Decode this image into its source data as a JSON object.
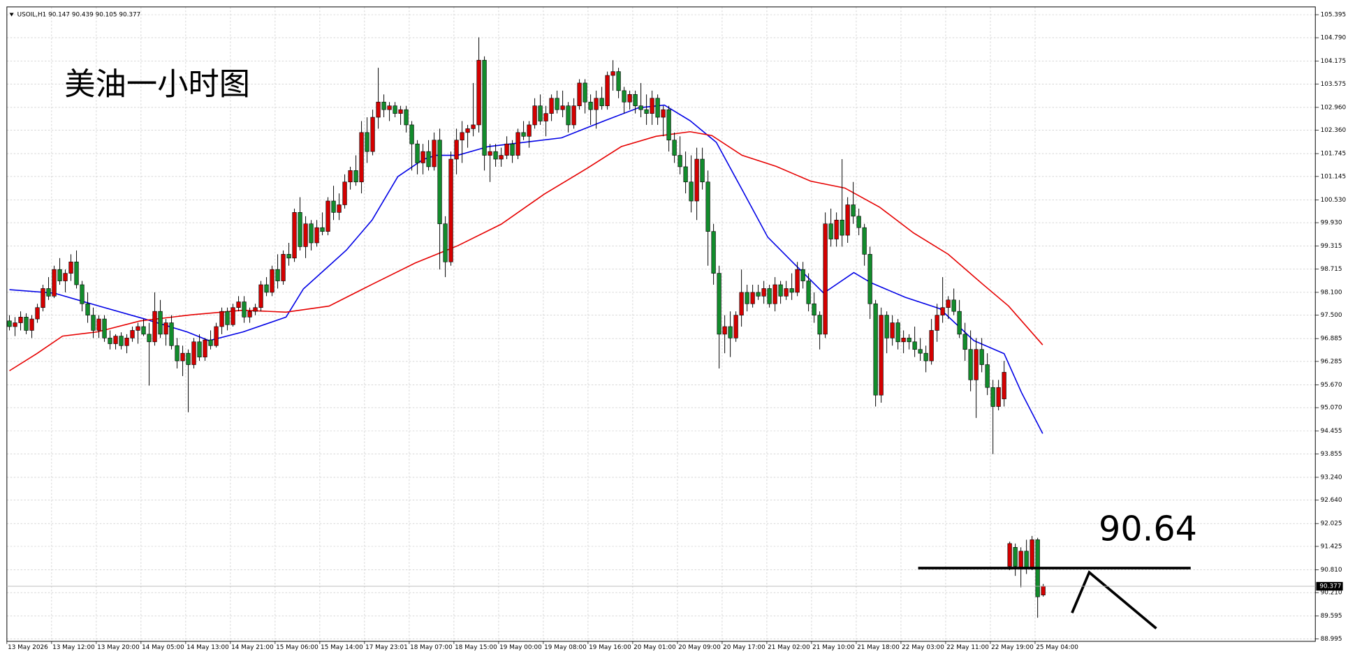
{
  "chart_data": {
    "type": "candlestick",
    "header": "USOIL,H1  90.147 90.439 90.105 90.377",
    "title": "美油一小时图",
    "annotation": "90.64",
    "bull_color": "#d40000",
    "bear_color": "#128c2c",
    "grid": true,
    "ylim": [
      88.93,
      105.6
    ],
    "yticks": [
      105.395,
      {
        "value": 104.79,
        "label": "104.790"
      },
      104.175,
      103.575,
      {
        "value": 102.96,
        "label": "102.960"
      },
      {
        "value": 102.36,
        "label": "102.360"
      },
      101.745,
      101.145,
      {
        "value": 100.53,
        "label": "100.530"
      },
      {
        "value": 99.93,
        "label": "99.930"
      },
      99.315,
      98.715,
      {
        "value": 98.1,
        "label": "98.100"
      },
      {
        "value": 97.5,
        "label": "97.500"
      },
      96.885,
      96.285,
      {
        "value": 95.67,
        "label": "95.670"
      },
      {
        "value": 95.07,
        "label": "95.070"
      },
      94.455,
      93.855,
      {
        "value": 93.24,
        "label": "93.240"
      },
      {
        "value": 92.64,
        "label": "92.640"
      },
      92.025,
      91.425,
      {
        "value": 90.81,
        "label": "90.810"
      },
      {
        "value": 90.21,
        "label": "90.210"
      },
      89.595,
      88.995
    ],
    "xticks": [
      {
        "value": 0,
        "label": "13 May 2026"
      },
      {
        "value": 8,
        "label": "13 May 12:00"
      },
      {
        "value": 16,
        "label": "13 May 20:00"
      },
      {
        "value": 24,
        "label": "14 May 05:00"
      },
      {
        "value": 32,
        "label": "14 May 13:00"
      },
      {
        "value": 40,
        "label": "14 May 21:00"
      },
      {
        "value": 48,
        "label": "15 May 06:00"
      },
      {
        "value": 56,
        "label": "15 May 14:00"
      },
      {
        "value": 64,
        "label": "17 May 23:01"
      },
      {
        "value": 72,
        "label": "18 May 07:00"
      },
      {
        "value": 80,
        "label": "18 May 15:00"
      },
      {
        "value": 88,
        "label": "19 May 00:00"
      },
      {
        "value": 96,
        "label": "19 May 08:00"
      },
      {
        "value": 104,
        "label": "19 May 16:00"
      },
      {
        "value": 112,
        "label": "20 May 01:00"
      },
      {
        "value": 120,
        "label": "20 May 09:00"
      },
      {
        "value": 128,
        "label": "20 May 17:00"
      },
      {
        "value": 136,
        "label": "21 May 02:00"
      },
      {
        "value": 144,
        "label": "21 May 10:00"
      },
      {
        "value": 152,
        "label": "21 May 18:00"
      },
      {
        "value": 160,
        "label": "22 May 03:00"
      },
      {
        "value": 168,
        "label": "22 May 11:00"
      },
      {
        "value": 176,
        "label": "22 May 19:00"
      },
      {
        "value": 184,
        "label": "25 May 04:00"
      }
    ],
    "last_price": 90.377,
    "ohlc": [
      [
        97.35,
        97.5,
        97.1,
        97.2
      ],
      [
        97.2,
        97.45,
        96.95,
        97.3
      ],
      [
        97.3,
        97.6,
        97.1,
        97.45
      ],
      [
        97.45,
        97.55,
        97.0,
        97.1
      ],
      [
        97.1,
        97.5,
        96.9,
        97.4
      ],
      [
        97.4,
        97.8,
        97.3,
        97.7
      ],
      [
        97.7,
        98.3,
        97.6,
        98.2
      ],
      [
        98.2,
        98.5,
        97.9,
        98.0
      ],
      [
        98.0,
        98.8,
        97.95,
        98.7
      ],
      [
        98.7,
        99.0,
        98.3,
        98.4
      ],
      [
        98.4,
        98.7,
        98.1,
        98.6
      ],
      [
        98.6,
        99.1,
        98.4,
        98.9
      ],
      [
        98.9,
        99.2,
        98.2,
        98.3
      ],
      [
        98.3,
        98.4,
        97.6,
        97.8
      ],
      [
        97.8,
        98.1,
        97.3,
        97.5
      ],
      [
        97.5,
        97.7,
        96.9,
        97.1
      ],
      [
        97.1,
        97.5,
        96.9,
        97.4
      ],
      [
        97.4,
        97.5,
        96.8,
        96.9
      ],
      [
        96.9,
        97.1,
        96.6,
        96.75
      ],
      [
        96.75,
        97.0,
        96.6,
        96.95
      ],
      [
        96.95,
        97.05,
        96.6,
        96.7
      ],
      [
        96.7,
        97.0,
        96.5,
        96.9
      ],
      [
        96.9,
        97.2,
        96.8,
        97.1
      ],
      [
        97.1,
        97.3,
        96.75,
        97.2
      ],
      [
        97.2,
        97.4,
        96.95,
        97.0
      ],
      [
        97.0,
        97.3,
        95.65,
        96.8
      ],
      [
        96.8,
        98.1,
        96.7,
        97.6
      ],
      [
        97.6,
        97.9,
        96.9,
        97.0
      ],
      [
        97.0,
        97.4,
        96.7,
        97.3
      ],
      [
        97.3,
        97.5,
        96.6,
        96.7
      ],
      [
        96.7,
        96.9,
        96.1,
        96.3
      ],
      [
        96.3,
        96.7,
        95.9,
        96.5
      ],
      [
        96.5,
        96.6,
        94.95,
        96.2
      ],
      [
        96.2,
        96.9,
        96.1,
        96.8
      ],
      [
        96.8,
        97.0,
        96.3,
        96.4
      ],
      [
        96.4,
        96.9,
        96.3,
        96.85
      ],
      [
        96.85,
        97.1,
        96.6,
        96.7
      ],
      [
        96.7,
        97.3,
        96.65,
        97.2
      ],
      [
        97.2,
        97.7,
        97.0,
        97.6
      ],
      [
        97.6,
        97.7,
        97.1,
        97.25
      ],
      [
        97.25,
        97.8,
        97.2,
        97.7
      ],
      [
        97.7,
        98.0,
        97.6,
        97.85
      ],
      [
        97.85,
        98.0,
        97.3,
        97.45
      ],
      [
        97.45,
        97.7,
        97.3,
        97.6
      ],
      [
        97.6,
        97.8,
        97.5,
        97.7
      ],
      [
        97.7,
        98.4,
        97.6,
        98.3
      ],
      [
        98.3,
        98.5,
        98.0,
        98.1
      ],
      [
        98.1,
        98.8,
        98.0,
        98.7
      ],
      [
        98.7,
        99.1,
        98.2,
        98.4
      ],
      [
        98.4,
        99.2,
        98.3,
        99.1
      ],
      [
        99.1,
        99.4,
        98.8,
        99.0
      ],
      [
        99.0,
        100.3,
        98.9,
        100.2
      ],
      [
        100.2,
        100.6,
        99.2,
        99.3
      ],
      [
        99.3,
        100.1,
        99.0,
        99.9
      ],
      [
        99.9,
        100.0,
        99.2,
        99.4
      ],
      [
        99.4,
        100.0,
        99.3,
        99.8
      ],
      [
        99.8,
        100.2,
        99.6,
        99.7
      ],
      [
        99.7,
        100.6,
        99.6,
        100.5
      ],
      [
        100.5,
        100.9,
        100.0,
        100.2
      ],
      [
        100.2,
        100.7,
        100.0,
        100.4
      ],
      [
        100.4,
        101.2,
        100.3,
        101.0
      ],
      [
        101.0,
        101.4,
        100.8,
        101.3
      ],
      [
        101.3,
        101.7,
        100.9,
        101.0
      ],
      [
        101.0,
        102.6,
        100.7,
        102.3
      ],
      [
        102.3,
        102.7,
        101.5,
        101.8
      ],
      [
        101.8,
        102.9,
        101.7,
        102.7
      ],
      [
        102.7,
        104.0,
        102.4,
        103.1
      ],
      [
        103.1,
        103.3,
        102.7,
        102.9
      ],
      [
        102.9,
        103.1,
        102.6,
        103.0
      ],
      [
        103.0,
        103.1,
        102.7,
        102.8
      ],
      [
        102.8,
        103.0,
        102.5,
        102.9
      ],
      [
        102.9,
        103.0,
        102.3,
        102.5
      ],
      [
        102.5,
        102.6,
        101.3,
        102.0
      ],
      [
        102.0,
        102.1,
        101.2,
        101.5
      ],
      [
        101.5,
        102.0,
        101.2,
        101.8
      ],
      [
        101.8,
        102.1,
        101.3,
        101.4
      ],
      [
        101.4,
        102.3,
        101.3,
        102.1
      ],
      [
        102.1,
        102.4,
        98.7,
        99.9
      ],
      [
        99.9,
        100.1,
        98.5,
        98.9
      ],
      [
        98.9,
        101.8,
        98.8,
        101.6
      ],
      [
        101.6,
        102.4,
        101.2,
        102.1
      ],
      [
        102.1,
        102.6,
        101.5,
        102.3
      ],
      [
        102.3,
        102.5,
        101.9,
        102.4
      ],
      [
        102.4,
        103.6,
        102.2,
        102.5
      ],
      [
        102.5,
        104.8,
        102.3,
        104.2
      ],
      [
        104.2,
        104.3,
        101.3,
        101.7
      ],
      [
        101.7,
        102.0,
        101.0,
        101.8
      ],
      [
        101.8,
        102.0,
        101.4,
        101.6
      ],
      [
        101.6,
        101.9,
        101.4,
        101.7
      ],
      [
        101.7,
        102.2,
        101.6,
        102.0
      ],
      [
        102.0,
        102.1,
        101.5,
        101.7
      ],
      [
        101.7,
        102.4,
        101.6,
        102.3
      ],
      [
        102.3,
        102.6,
        102.1,
        102.2
      ],
      [
        102.2,
        102.6,
        101.9,
        102.5
      ],
      [
        102.5,
        103.2,
        102.4,
        103.0
      ],
      [
        103.0,
        103.3,
        102.5,
        102.6
      ],
      [
        102.6,
        103.0,
        102.2,
        102.8
      ],
      [
        102.8,
        103.3,
        102.6,
        103.2
      ],
      [
        103.2,
        103.4,
        102.8,
        102.9
      ],
      [
        102.9,
        103.4,
        102.7,
        103.0
      ],
      [
        103.0,
        103.1,
        102.3,
        102.5
      ],
      [
        102.5,
        103.2,
        102.4,
        103.0
      ],
      [
        103.0,
        103.7,
        102.9,
        103.6
      ],
      [
        103.6,
        103.7,
        102.8,
        103.1
      ],
      [
        103.1,
        103.3,
        102.5,
        102.9
      ],
      [
        102.9,
        103.4,
        102.4,
        103.2
      ],
      [
        103.2,
        103.5,
        102.9,
        103.0
      ],
      [
        103.0,
        103.9,
        102.9,
        103.8
      ],
      [
        103.8,
        104.2,
        103.4,
        103.9
      ],
      [
        103.9,
        104.0,
        103.2,
        103.4
      ],
      [
        103.4,
        103.5,
        102.8,
        103.1
      ],
      [
        103.1,
        103.4,
        102.9,
        103.3
      ],
      [
        103.3,
        103.4,
        102.8,
        103.0
      ],
      [
        103.0,
        103.6,
        102.7,
        102.9
      ],
      [
        102.9,
        103.3,
        102.5,
        102.8
      ],
      [
        102.8,
        103.4,
        102.5,
        103.2
      ],
      [
        103.2,
        103.3,
        102.5,
        102.7
      ],
      [
        102.7,
        103.0,
        102.2,
        102.9
      ],
      [
        102.9,
        103.0,
        101.8,
        102.1
      ],
      [
        102.1,
        102.3,
        101.5,
        101.7
      ],
      [
        101.7,
        102.2,
        101.2,
        101.4
      ],
      [
        101.4,
        101.8,
        100.7,
        101.0
      ],
      [
        101.0,
        101.7,
        100.2,
        100.5
      ],
      [
        100.5,
        101.9,
        100.0,
        101.6
      ],
      [
        101.6,
        101.9,
        100.8,
        101.0
      ],
      [
        101.0,
        101.3,
        98.8,
        99.7
      ],
      [
        99.7,
        99.9,
        98.3,
        98.6
      ],
      [
        98.6,
        98.8,
        96.1,
        97.0
      ],
      [
        97.0,
        97.5,
        96.5,
        97.2
      ],
      [
        97.2,
        97.6,
        96.4,
        96.9
      ],
      [
        96.9,
        97.6,
        96.8,
        97.5
      ],
      [
        97.5,
        98.7,
        97.2,
        98.1
      ],
      [
        98.1,
        98.3,
        97.6,
        97.8
      ],
      [
        97.8,
        98.3,
        97.7,
        98.1
      ],
      [
        98.1,
        98.3,
        97.9,
        98.0
      ],
      [
        98.0,
        98.4,
        97.8,
        98.2
      ],
      [
        98.2,
        98.3,
        97.7,
        97.8
      ],
      [
        97.8,
        98.5,
        97.6,
        98.3
      ],
      [
        98.3,
        98.4,
        97.8,
        98.0
      ],
      [
        98.0,
        98.4,
        97.9,
        98.2
      ],
      [
        98.2,
        98.6,
        97.9,
        98.1
      ],
      [
        98.1,
        98.9,
        98.0,
        98.7
      ],
      [
        98.7,
        98.9,
        98.2,
        98.4
      ],
      [
        98.4,
        98.6,
        97.6,
        97.8
      ],
      [
        97.8,
        98.1,
        97.3,
        97.5
      ],
      [
        97.5,
        97.6,
        96.6,
        97.0
      ],
      [
        97.0,
        100.2,
        96.9,
        99.9
      ],
      [
        99.9,
        100.3,
        99.3,
        99.5
      ],
      [
        99.5,
        100.2,
        99.3,
        100.0
      ],
      [
        100.0,
        101.6,
        99.3,
        99.6
      ],
      [
        99.6,
        100.6,
        99.4,
        100.4
      ],
      [
        100.4,
        101.0,
        99.9,
        100.1
      ],
      [
        100.1,
        100.3,
        99.6,
        99.8
      ],
      [
        99.8,
        99.9,
        98.8,
        99.1
      ],
      [
        99.1,
        99.3,
        97.4,
        97.8
      ],
      [
        97.8,
        97.9,
        95.1,
        95.4
      ],
      [
        95.4,
        97.7,
        95.2,
        97.5
      ],
      [
        97.5,
        97.6,
        96.5,
        96.9
      ],
      [
        96.9,
        97.5,
        96.7,
        97.3
      ],
      [
        97.3,
        97.4,
        96.6,
        96.8
      ],
      [
        96.8,
        97.1,
        96.5,
        96.9
      ],
      [
        96.9,
        97.0,
        96.6,
        96.8
      ],
      [
        96.8,
        97.2,
        96.4,
        96.6
      ],
      [
        96.6,
        96.9,
        96.3,
        96.5
      ],
      [
        96.5,
        96.7,
        96.0,
        96.3
      ],
      [
        96.3,
        97.4,
        96.2,
        97.1
      ],
      [
        97.1,
        97.8,
        96.8,
        97.5
      ],
      [
        97.5,
        98.5,
        97.3,
        97.7
      ],
      [
        97.7,
        98.0,
        97.4,
        97.9
      ],
      [
        97.9,
        98.2,
        97.5,
        97.6
      ],
      [
        97.6,
        97.9,
        96.9,
        97.0
      ],
      [
        97.0,
        97.3,
        96.3,
        96.6
      ],
      [
        96.6,
        97.1,
        95.5,
        95.8
      ],
      [
        95.8,
        96.9,
        94.8,
        96.6
      ],
      [
        96.6,
        96.9,
        96.0,
        96.2
      ],
      [
        96.2,
        96.5,
        95.4,
        95.6
      ],
      [
        95.6,
        95.8,
        93.85,
        95.1
      ],
      [
        95.1,
        95.8,
        95.0,
        95.6
      ],
      [
        95.3,
        96.3,
        95.1,
        96.0
      ],
      [
        90.9,
        91.55,
        90.8,
        91.5
      ],
      [
        91.4,
        91.5,
        90.65,
        90.9
      ],
      [
        90.85,
        91.4,
        90.35,
        91.3
      ],
      [
        91.3,
        91.6,
        90.7,
        90.85
      ],
      [
        90.85,
        91.7,
        90.8,
        91.6
      ],
      [
        91.6,
        91.65,
        89.55,
        90.1
      ],
      [
        90.147,
        90.439,
        90.105,
        90.377
      ]
    ],
    "lines": [
      {
        "color": "#0000e6",
        "x": [
          0,
          8,
          16,
          24.2,
          31.8,
          35.7,
          41.8,
          49.5,
          52.6,
          60.3,
          64.9,
          69.5,
          74.0,
          76.3,
          80.2,
          85.7,
          98.8,
          106.5,
          112.6,
          117.2,
          121.8,
          126.5,
          131.1,
          135.7,
          140.3,
          145.7,
          151.1,
          154.2,
          160.3,
          166.5,
          172.6,
          178,
          181.1,
          184.9
        ],
        "values": [
          98.17,
          98.08,
          97.74,
          97.4,
          97.06,
          96.83,
          97.06,
          97.45,
          98.19,
          99.21,
          100.0,
          101.14,
          101.59,
          101.7,
          101.7,
          101.93,
          102.16,
          102.61,
          102.95,
          103.02,
          102.61,
          102.04,
          100.8,
          99.55,
          98.87,
          98.08,
          98.62,
          98.35,
          97.97,
          97.67,
          96.83,
          96.49,
          95.47,
          94.39
        ]
      },
      {
        "color": "#e60000",
        "x": [
          0,
          4.9,
          9.5,
          15.7,
          23.4,
          32.6,
          41.8,
          49.5,
          57.2,
          64.9,
          72.6,
          80.3,
          88,
          95.7,
          103.4,
          109.5,
          115.7,
          121.8,
          125.7,
          131.1,
          137.2,
          143.4,
          149.5,
          155.7,
          161.8,
          168,
          174.2,
          178.8,
          184.9
        ],
        "values": [
          96.04,
          96.49,
          96.95,
          97.06,
          97.35,
          97.51,
          97.63,
          97.58,
          97.74,
          98.31,
          98.87,
          99.33,
          99.89,
          100.68,
          101.36,
          101.93,
          102.2,
          102.32,
          102.22,
          101.7,
          101.41,
          101.02,
          100.84,
          100.34,
          99.66,
          99.1,
          98.31,
          97.74,
          96.72
        ]
      }
    ]
  }
}
